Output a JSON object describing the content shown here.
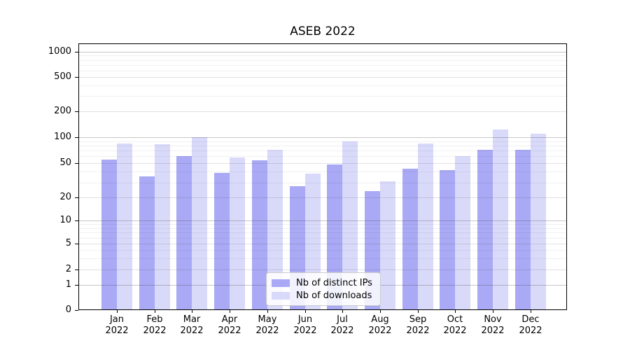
{
  "chart_data": {
    "type": "bar",
    "title": "ASEB 2022",
    "categories": [
      "Jan",
      "Feb",
      "Mar",
      "Apr",
      "May",
      "Jun",
      "Jul",
      "Aug",
      "Sep",
      "Oct",
      "Nov",
      "Dec"
    ],
    "x_year_line": "2022",
    "series": [
      {
        "name": "Nb of distinct IPs",
        "color": "#a9a9f5",
        "values": [
          55,
          35,
          60,
          39,
          54,
          27,
          48,
          24,
          43,
          42,
          72,
          71
        ]
      },
      {
        "name": "Nb of downloads",
        "color": "#d9d9fa",
        "values": [
          85,
          83,
          100,
          58,
          72,
          38,
          90,
          31,
          84,
          61,
          123,
          109
        ]
      }
    ],
    "y_axis": {
      "scale": "symlog",
      "tick_labels": [
        "1000",
        "500",
        "200",
        "100",
        "50",
        "20",
        "10",
        "5",
        "2",
        "1",
        "0"
      ],
      "tick_values": [
        1000,
        500,
        200,
        100,
        50,
        20,
        10,
        5,
        2,
        1,
        0
      ]
    },
    "grid": "major+minor",
    "legend_position": "lower center"
  }
}
